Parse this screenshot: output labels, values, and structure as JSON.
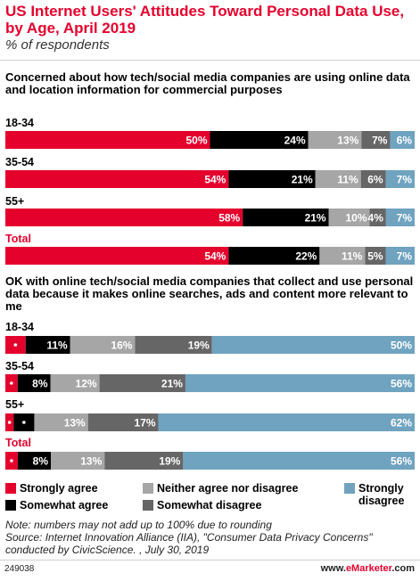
{
  "header": {
    "title": "US Internet Users' Attitudes Toward Personal Data Use, by Age, April 2019",
    "subtitle": "% of respondents"
  },
  "colors": {
    "strongly_agree": "#e4022d",
    "somewhat_agree": "#000000",
    "neither": "#a6a6a6",
    "somewhat_disagree": "#666666",
    "strongly_disagree": "#6fa3c0"
  },
  "chart_data": [
    {
      "type": "bar",
      "orientation": "horizontal",
      "stacked": true,
      "title": "Concerned about how tech/social media companies are using online data and location information for commercial purposes",
      "categories": [
        "18-34",
        "35-54",
        "55+",
        "Total"
      ],
      "unit": "%",
      "series": [
        {
          "name": "Strongly agree",
          "values": [
            50,
            54,
            58,
            54
          ]
        },
        {
          "name": "Somewhat agree",
          "values": [
            24,
            21,
            21,
            22
          ]
        },
        {
          "name": "Neither agree nor disagree",
          "values": [
            13,
            11,
            10,
            11
          ]
        },
        {
          "name": "Somewhat disagree",
          "values": [
            7,
            6,
            4,
            5
          ]
        },
        {
          "name": "Strongly disagree",
          "values": [
            6,
            7,
            7,
            7
          ]
        }
      ],
      "labels": [
        [
          "50%",
          "24%",
          "13%",
          "7%",
          "6%"
        ],
        [
          "54%",
          "21%",
          "11%",
          "6%",
          "7%"
        ],
        [
          "58%",
          "21%",
          "10%",
          "4%",
          "7%"
        ],
        [
          "54%",
          "22%",
          "11%",
          "5%",
          "7%"
        ]
      ]
    },
    {
      "type": "bar",
      "orientation": "horizontal",
      "stacked": true,
      "title": "OK with online tech/social media companies that collect and use personal data because it makes online searches, ads and content more relevant to me",
      "categories": [
        "18-34",
        "35-54",
        "55+",
        "Total"
      ],
      "unit": "%",
      "series": [
        {
          "name": "Strongly agree",
          "values": [
            5,
            3,
            2,
            3
          ]
        },
        {
          "name": "Somewhat agree",
          "values": [
            11,
            8,
            5,
            8
          ]
        },
        {
          "name": "Neither agree nor disagree",
          "values": [
            16,
            12,
            13,
            13
          ]
        },
        {
          "name": "Somewhat disagree",
          "values": [
            19,
            21,
            17,
            19
          ]
        },
        {
          "name": "Strongly disagree",
          "values": [
            50,
            56,
            62,
            56
          ]
        }
      ],
      "labels": [
        [
          "5%",
          "11%",
          "16%",
          "19%",
          "50%"
        ],
        [
          "3%",
          "8%",
          "12%",
          "21%",
          "56%"
        ],
        [
          "2%",
          "5%",
          "13%",
          "17%",
          "62%"
        ],
        [
          "3%",
          "8%",
          "13%",
          "19%",
          "56%"
        ]
      ]
    }
  ],
  "legend": [
    {
      "label": "Strongly agree"
    },
    {
      "label": "Somewhat agree"
    },
    {
      "label": "Neither agree nor disagree"
    },
    {
      "label": "Somewhat disagree"
    },
    {
      "label": "Strongly\ndisagree"
    }
  ],
  "footer": {
    "note": "Note: numbers may not add up to 100% due to rounding",
    "source": "Source: Internet Innovation Alliance (IIA), \"Consumer Data Privacy Concerns\" conducted by CivicScience. , July 30, 2019",
    "chart_id": "249038",
    "brand_prefix": "www.",
    "brand_name": "eMarketer",
    "brand_suffix": ".com"
  }
}
